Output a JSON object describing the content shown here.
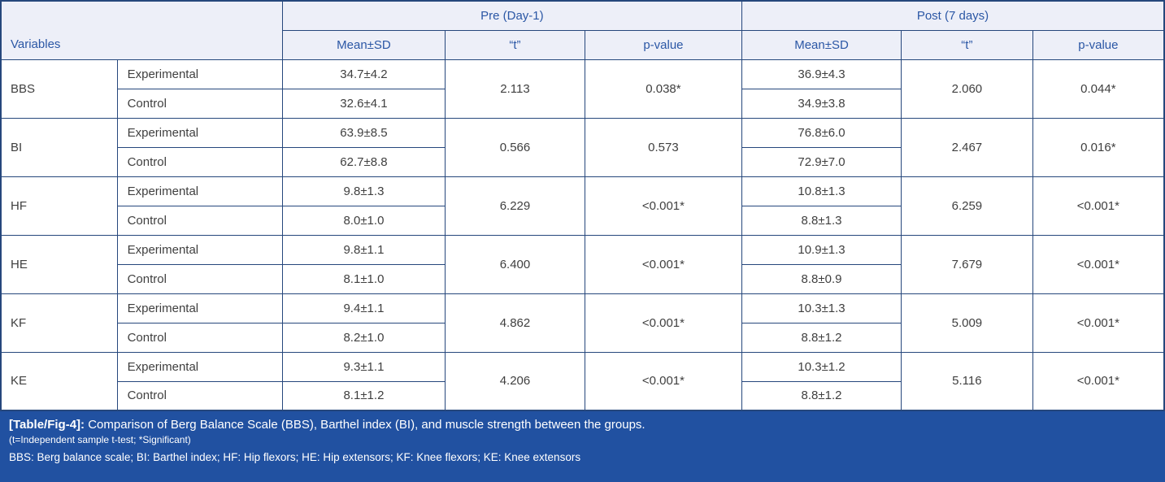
{
  "table": {
    "header": {
      "variables_label": "Variables",
      "pre_label": "Pre (Day-1)",
      "post_label": "Post (7 days)",
      "sub_columns": [
        "Mean±SD",
        "“t”",
        "p-value",
        "Mean±SD",
        "“t”",
        "p-value"
      ]
    },
    "rows": [
      {
        "variable": "BBS",
        "groups": [
          "Experimental",
          "Control"
        ],
        "pre": {
          "means": [
            "34.7±4.2",
            "32.6±4.1"
          ],
          "t": "2.113",
          "p": "0.038*"
        },
        "post": {
          "means": [
            "36.9±4.3",
            "34.9±3.8"
          ],
          "t": "2.060",
          "p": "0.044*"
        }
      },
      {
        "variable": "BI",
        "groups": [
          "Experimental",
          "Control"
        ],
        "pre": {
          "means": [
            "63.9±8.5",
            "62.7±8.8"
          ],
          "t": "0.566",
          "p": "0.573"
        },
        "post": {
          "means": [
            "76.8±6.0",
            "72.9±7.0"
          ],
          "t": "2.467",
          "p": "0.016*"
        }
      },
      {
        "variable": "HF",
        "groups": [
          "Experimental",
          "Control"
        ],
        "pre": {
          "means": [
            "9.8±1.3",
            "8.0±1.0"
          ],
          "t": "6.229",
          "p": "<0.001*"
        },
        "post": {
          "means": [
            "10.8±1.3",
            "8.8±1.3"
          ],
          "t": "6.259",
          "p": "<0.001*"
        }
      },
      {
        "variable": "HE",
        "groups": [
          "Experimental",
          "Control"
        ],
        "pre": {
          "means": [
            "9.8±1.1",
            "8.1±1.0"
          ],
          "t": "6.400",
          "p": "<0.001*"
        },
        "post": {
          "means": [
            "10.9±1.3",
            "8.8±0.9"
          ],
          "t": "7.679",
          "p": "<0.001*"
        }
      },
      {
        "variable": "KF",
        "groups": [
          "Experimental",
          "Control"
        ],
        "pre": {
          "means": [
            "9.4±1.1",
            "8.2±1.0"
          ],
          "t": "4.862",
          "p": "<0.001*"
        },
        "post": {
          "means": [
            "10.3±1.3",
            "8.8±1.2"
          ],
          "t": "5.009",
          "p": "<0.001*"
        }
      },
      {
        "variable": "KE",
        "groups": [
          "Experimental",
          "Control"
        ],
        "pre": {
          "means": [
            "9.3±1.1",
            "8.1±1.2"
          ],
          "t": "4.206",
          "p": "<0.001*"
        },
        "post": {
          "means": [
            "10.3±1.2",
            "8.8±1.2"
          ],
          "t": "5.116",
          "p": "<0.001*"
        }
      }
    ]
  },
  "footer": {
    "caption_label": "[Table/Fig-4]:",
    "caption_text": "Comparison of Berg Balance Scale (BBS), Barthel index (BI), and muscle strength between the groups.",
    "note_method": "(t=Independent sample t-test; *Significant)",
    "note_abbreviations": "BBS: Berg balance scale; BI: Barthel index; HF: Hip flexors; HE: Hip extensors; KF: Knee flexors; KE: Knee extensors"
  },
  "colors": {
    "border_navy": "#26477c",
    "header_background": "#edeff8",
    "header_text_blue": "#2b57a5",
    "body_text": "#3f3f3f",
    "footer_background": "#2151a1",
    "footer_text": "#ffffff"
  }
}
